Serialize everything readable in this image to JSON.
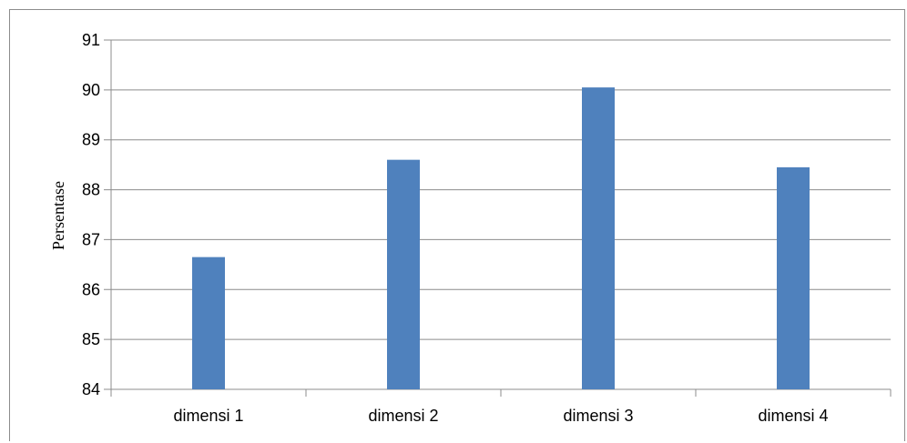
{
  "chart_data": {
    "type": "bar",
    "categories": [
      "dimensi 1",
      "dimensi 2",
      "dimensi 3",
      "dimensi 4"
    ],
    "values": [
      86.65,
      88.6,
      90.05,
      88.45
    ],
    "ylabel": "Persentase",
    "ylim": [
      84,
      91
    ],
    "yticks": [
      "84",
      "85",
      "86",
      "87",
      "88",
      "89",
      "90",
      "91"
    ],
    "grid": true,
    "bar_color": "#4f81bd",
    "grid_color": "#8c8c8c"
  }
}
